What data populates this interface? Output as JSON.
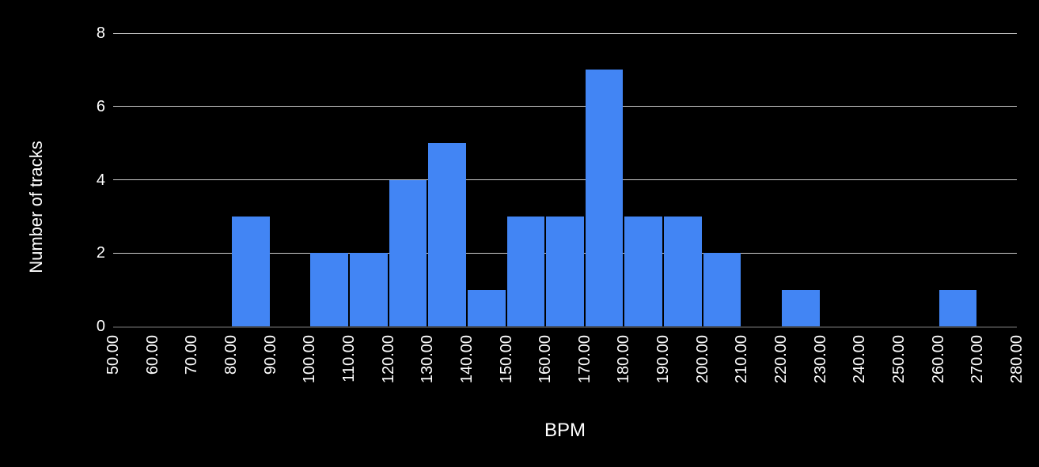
{
  "chart": {
    "title": "",
    "xlabel": "BPM",
    "ylabel": "Number of tracks",
    "colors": {
      "background": "#000000",
      "bar": "#4285f4",
      "text": "#ffffff",
      "gridline": "#cccccc",
      "axis_line": "#3d3d3d"
    }
  },
  "chart_data": {
    "type": "bar",
    "subtype": "histogram",
    "title": "",
    "xlabel": "BPM",
    "ylabel": "Number of tracks",
    "xlim": [
      50,
      280
    ],
    "ylim": [
      0,
      8
    ],
    "bin_width": 10,
    "grid": true,
    "legend": false,
    "x_tick_labels": [
      "50.00",
      "60.00",
      "70.00",
      "80.00",
      "90.00",
      "100.00",
      "110.00",
      "120.00",
      "130.00",
      "140.00",
      "150.00",
      "160.00",
      "170.00",
      "180.00",
      "190.00",
      "200.00",
      "210.00",
      "220.00",
      "230.00",
      "240.00",
      "250.00",
      "260.00",
      "270.00",
      "280.00"
    ],
    "x_tick_values": [
      50,
      60,
      70,
      80,
      90,
      100,
      110,
      120,
      130,
      140,
      150,
      160,
      170,
      180,
      190,
      200,
      210,
      220,
      230,
      240,
      250,
      260,
      270,
      280
    ],
    "y_tick_labels": [
      "0",
      "2",
      "4",
      "6",
      "8"
    ],
    "y_tick_values": [
      0,
      2,
      4,
      6,
      8
    ],
    "bins": [
      {
        "start": 80,
        "end": 90,
        "count": 3
      },
      {
        "start": 100,
        "end": 110,
        "count": 2
      },
      {
        "start": 110,
        "end": 120,
        "count": 2
      },
      {
        "start": 120,
        "end": 130,
        "count": 4
      },
      {
        "start": 130,
        "end": 140,
        "count": 5
      },
      {
        "start": 140,
        "end": 150,
        "count": 1
      },
      {
        "start": 150,
        "end": 160,
        "count": 3
      },
      {
        "start": 160,
        "end": 170,
        "count": 3
      },
      {
        "start": 170,
        "end": 180,
        "count": 7
      },
      {
        "start": 180,
        "end": 190,
        "count": 3
      },
      {
        "start": 190,
        "end": 200,
        "count": 3
      },
      {
        "start": 200,
        "end": 210,
        "count": 2
      },
      {
        "start": 220,
        "end": 230,
        "count": 1
      },
      {
        "start": 260,
        "end": 270,
        "count": 1
      }
    ]
  }
}
